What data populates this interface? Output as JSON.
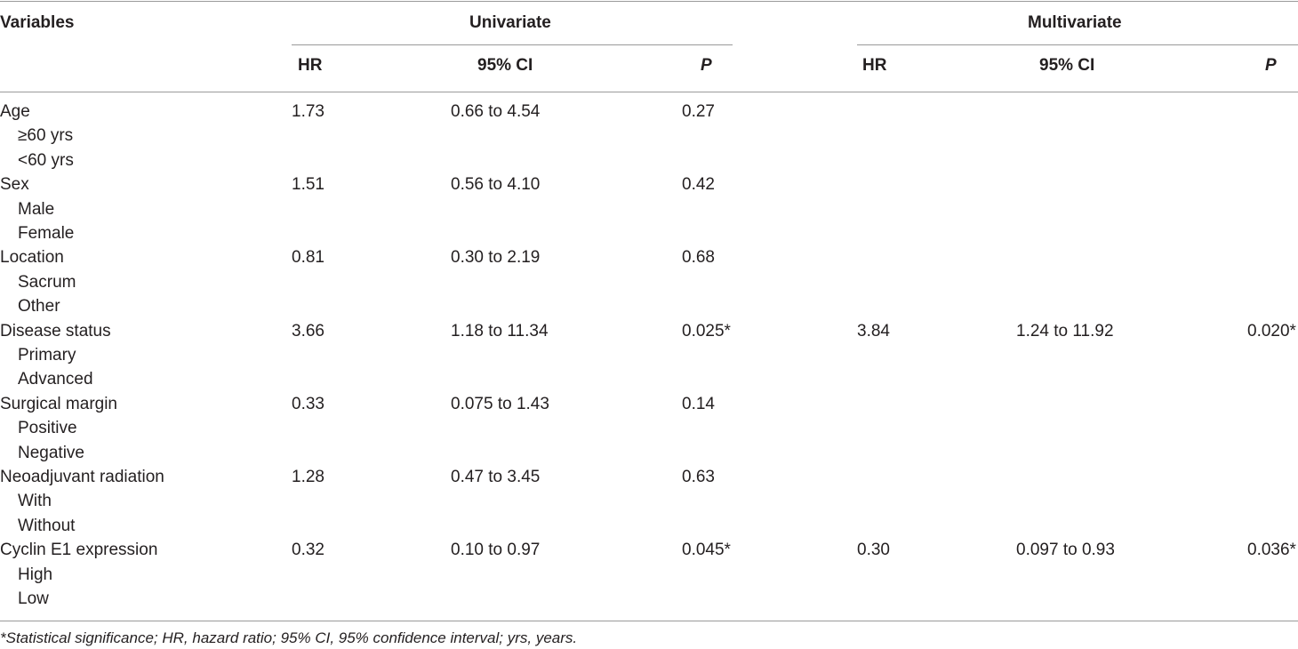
{
  "table": {
    "headers": {
      "variables": "Variables",
      "univariate": "Univariate",
      "multivariate": "Multivariate",
      "hr": "HR",
      "ci": "95% CI",
      "p": "P"
    },
    "rows": [
      {
        "label": "Age",
        "uni_hr": "1.73",
        "uni_ci": "0.66 to 4.54",
        "uni_p": "0.27",
        "multi_hr": "",
        "multi_ci": "",
        "multi_p": "",
        "sub": [
          "≥60 yrs",
          "<60 yrs"
        ]
      },
      {
        "label": "Sex",
        "uni_hr": "1.51",
        "uni_ci": "0.56 to 4.10",
        "uni_p": "0.42",
        "multi_hr": "",
        "multi_ci": "",
        "multi_p": "",
        "sub": [
          "Male",
          "Female"
        ]
      },
      {
        "label": "Location",
        "uni_hr": "0.81",
        "uni_ci": "0.30 to 2.19",
        "uni_p": "0.68",
        "multi_hr": "",
        "multi_ci": "",
        "multi_p": "",
        "sub": [
          "Sacrum",
          "Other"
        ]
      },
      {
        "label": "Disease status",
        "uni_hr": "3.66",
        "uni_ci": "1.18 to 11.34",
        "uni_p": "0.025*",
        "multi_hr": "3.84",
        "multi_ci": "1.24 to 11.92",
        "multi_p": "0.020*",
        "sub": [
          "Primary",
          "Advanced"
        ]
      },
      {
        "label": "Surgical margin",
        "uni_hr": "0.33",
        "uni_ci": "0.075 to 1.43",
        "uni_p": "0.14",
        "multi_hr": "",
        "multi_ci": "",
        "multi_p": "",
        "sub": [
          "Positive",
          "Negative"
        ]
      },
      {
        "label": "Neoadjuvant radiation",
        "uni_hr": "1.28",
        "uni_ci": "0.47 to 3.45",
        "uni_p": "0.63",
        "multi_hr": "",
        "multi_ci": "",
        "multi_p": "",
        "sub": [
          "With",
          "Without"
        ]
      },
      {
        "label": "Cyclin E1 expression",
        "uni_hr": "0.32",
        "uni_ci": "0.10 to 0.97",
        "uni_p": "0.045*",
        "multi_hr": "0.30",
        "multi_ci": "0.097 to 0.93",
        "multi_p": "0.036*",
        "sub": [
          "High",
          "Low"
        ]
      }
    ]
  },
  "footnote": "*Statistical significance; HR, hazard ratio; 95% CI, 95% confidence interval; yrs, years."
}
